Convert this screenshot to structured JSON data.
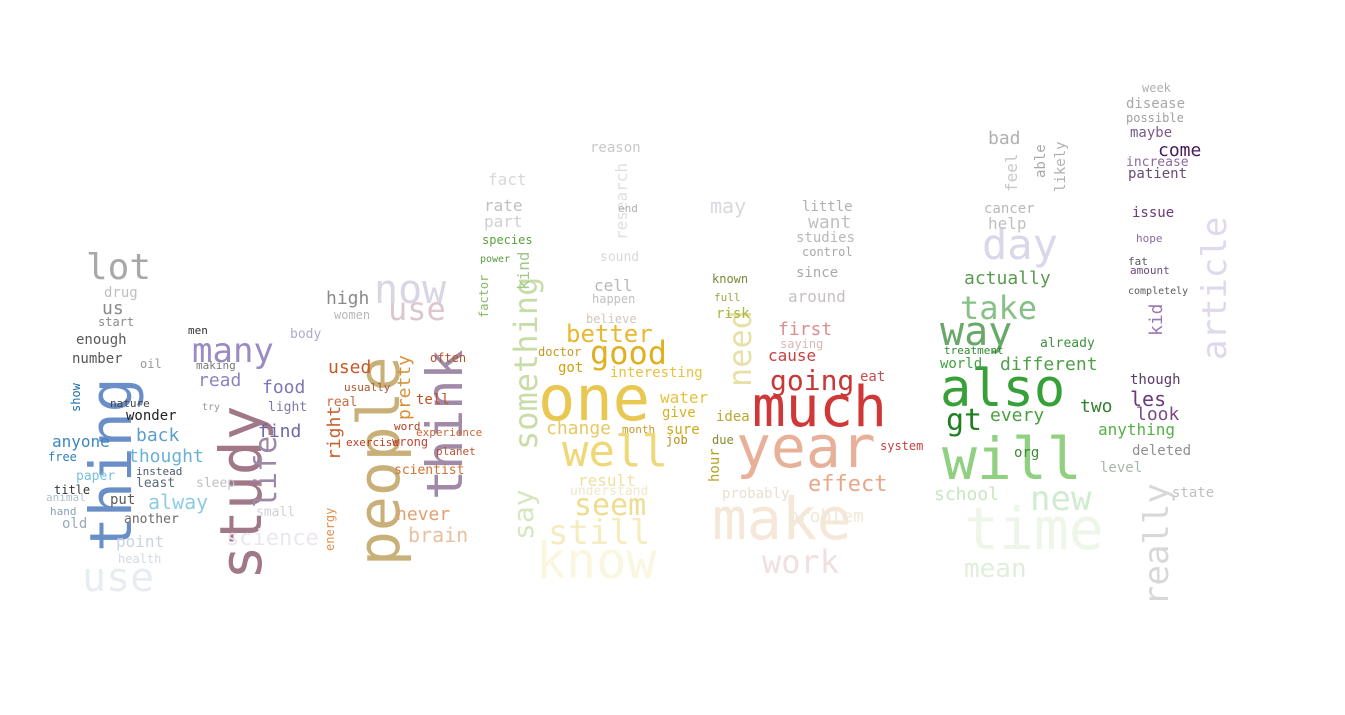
{
  "word_cloud": {
    "words": [
      {
        "text": "thing",
        "color": "#6a8ec8",
        "vertical": true
      },
      {
        "text": "lot",
        "color": "#a8a8a8",
        "vertical": false
      },
      {
        "text": "drug",
        "color": "#bfbfbf",
        "vertical": false
      },
      {
        "text": "us",
        "color": "#8a8a8a",
        "vertical": false
      },
      {
        "text": "start",
        "color": "#8a8a8a",
        "vertical": false
      },
      {
        "text": "enough",
        "color": "#5a5a5a",
        "vertical": false
      },
      {
        "text": "number",
        "color": "#555555",
        "vertical": false
      },
      {
        "text": "oil",
        "color": "#999999",
        "vertical": false
      },
      {
        "text": "show",
        "color": "#1f70a8",
        "vertical": true
      },
      {
        "text": "nature",
        "color": "#444444",
        "vertical": false
      },
      {
        "text": "wonder",
        "color": "#222222",
        "vertical": false
      },
      {
        "text": "anyone",
        "color": "#3f86c0",
        "vertical": false
      },
      {
        "text": "back",
        "color": "#5aa0c8",
        "vertical": false
      },
      {
        "text": "thought",
        "color": "#6ab0d8",
        "vertical": false
      },
      {
        "text": "free",
        "color": "#2f7fb8",
        "vertical": false
      },
      {
        "text": "paper",
        "color": "#7ac0e0",
        "vertical": false
      },
      {
        "text": "alway",
        "color": "#8ccde5",
        "vertical": false
      },
      {
        "text": "least",
        "color": "#5a6a7a",
        "vertical": false
      },
      {
        "text": "instead",
        "color": "#4a5a6a",
        "vertical": false
      },
      {
        "text": "put",
        "color": "#5a5a5a",
        "vertical": false
      },
      {
        "text": "another",
        "color": "#6a6a6a",
        "vertical": false
      },
      {
        "text": "title",
        "color": "#333333",
        "vertical": false
      },
      {
        "text": "old",
        "color": "#99aabb",
        "vertical": false
      },
      {
        "text": "point",
        "color": "#c8d4e0",
        "vertical": false
      },
      {
        "text": "hand",
        "color": "#8aa0b8",
        "vertical": false
      },
      {
        "text": "animal",
        "color": "#b0c0d0",
        "vertical": false
      },
      {
        "text": "health",
        "color": "#d0dae5",
        "vertical": false
      },
      {
        "text": "use",
        "color": "#e8edf2",
        "vertical": false
      },
      {
        "text": "many",
        "color": "#9a8cc2",
        "vertical": false
      },
      {
        "text": "study",
        "color": "#a07888",
        "vertical": true
      },
      {
        "text": "read",
        "color": "#8c84bf",
        "vertical": false
      },
      {
        "text": "food",
        "color": "#7e76b8",
        "vertical": false
      },
      {
        "text": "life",
        "color": "#9d88a8",
        "vertical": true
      },
      {
        "text": "find",
        "color": "#6e68a8",
        "vertical": false
      },
      {
        "text": "light",
        "color": "#7a7aa8",
        "vertical": false
      },
      {
        "text": "body",
        "color": "#b0a8d0",
        "vertical": false
      },
      {
        "text": "men",
        "color": "#333333",
        "vertical": false
      },
      {
        "text": "making",
        "color": "#777777",
        "vertical": false
      },
      {
        "text": "try",
        "color": "#999999",
        "vertical": false
      },
      {
        "text": "sleep",
        "color": "#c0c0c8",
        "vertical": false
      },
      {
        "text": "science",
        "color": "#ebe6f0",
        "vertical": false
      },
      {
        "text": "small",
        "color": "#d0d0d8",
        "vertical": false
      },
      {
        "text": "now",
        "color": "#d8d5e5",
        "vertical": false
      },
      {
        "text": "use",
        "color": "#dcc6d0",
        "vertical": false
      },
      {
        "text": "people",
        "color": "#c8b078",
        "vertical": true
      },
      {
        "text": "think",
        "color": "#a08aa8",
        "vertical": true
      },
      {
        "text": "used",
        "color": "#c85a2a",
        "vertical": false
      },
      {
        "text": "pretty",
        "color": "#d89038",
        "vertical": true
      },
      {
        "text": "high",
        "color": "#8a8a8a",
        "vertical": false
      },
      {
        "text": "women",
        "color": "#b8b8b8",
        "vertical": false
      },
      {
        "text": "right",
        "color": "#c86030",
        "vertical": true
      },
      {
        "text": "real",
        "color": "#c87040",
        "vertical": false
      },
      {
        "text": "tell",
        "color": "#c05028",
        "vertical": false
      },
      {
        "text": "often",
        "color": "#b85028",
        "vertical": false
      },
      {
        "text": "exercise",
        "color": "#b84020",
        "vertical": false
      },
      {
        "text": "wrong",
        "color": "#c04838",
        "vertical": false
      },
      {
        "text": "scientist",
        "color": "#d07030",
        "vertical": false
      },
      {
        "text": "never",
        "color": "#e0a070",
        "vertical": false
      },
      {
        "text": "brain",
        "color": "#e8c0a0",
        "vertical": false
      },
      {
        "text": "energy",
        "color": "#e09050",
        "vertical": true
      },
      {
        "text": "word",
        "color": "#b04020",
        "vertical": false
      },
      {
        "text": "planet",
        "color": "#c05030",
        "vertical": false
      },
      {
        "text": "experience",
        "color": "#c86838",
        "vertical": false
      },
      {
        "text": "usually",
        "color": "#aa5530",
        "vertical": false
      },
      {
        "text": "something",
        "color": "#c8dca8",
        "vertical": true
      },
      {
        "text": "say",
        "color": "#d8e6c0",
        "vertical": true
      },
      {
        "text": "kind",
        "color": "#a0c888",
        "vertical": true
      },
      {
        "text": "species",
        "color": "#5aa040",
        "vertical": false
      },
      {
        "text": "part",
        "color": "#d0d0d0",
        "vertical": false
      },
      {
        "text": "rate",
        "color": "#c0c0c0",
        "vertical": false
      },
      {
        "text": "fact",
        "color": "#d8d8d8",
        "vertical": false
      },
      {
        "text": "research",
        "color": "#e0e0e0",
        "vertical": true
      },
      {
        "text": "power",
        "color": "#5a9a40",
        "vertical": false
      },
      {
        "text": "factor",
        "color": "#88b868",
        "vertical": true
      },
      {
        "text": "one",
        "color": "#e8c850",
        "vertical": false
      },
      {
        "text": "well",
        "color": "#f0d878",
        "vertical": false
      },
      {
        "text": "good",
        "color": "#e0b020",
        "vertical": false
      },
      {
        "text": "better",
        "color": "#e8b830",
        "vertical": false
      },
      {
        "text": "cell",
        "color": "#b8b8b8",
        "vertical": false
      },
      {
        "text": "believe",
        "color": "#d0c8b8",
        "vertical": false
      },
      {
        "text": "doctor",
        "color": "#c89820",
        "vertical": false
      },
      {
        "text": "got",
        "color": "#d0a010",
        "vertical": false
      },
      {
        "text": "interesting",
        "color": "#e8c040",
        "vertical": false
      },
      {
        "text": "change",
        "color": "#e8c860",
        "vertical": false
      },
      {
        "text": "seem",
        "color": "#f0dc90",
        "vertical": false
      },
      {
        "text": "still",
        "color": "#f5ecc0",
        "vertical": false
      },
      {
        "text": "result",
        "color": "#f0e0a0",
        "vertical": false
      },
      {
        "text": "understand",
        "color": "#f0e8c8",
        "vertical": false
      },
      {
        "text": "know",
        "color": "#fbf6e0",
        "vertical": false
      },
      {
        "text": "water",
        "color": "#e8c040",
        "vertical": false
      },
      {
        "text": "give",
        "color": "#d8b020",
        "vertical": false
      },
      {
        "text": "sure",
        "color": "#d0a818",
        "vertical": false
      },
      {
        "text": "job",
        "color": "#b89010",
        "vertical": false
      },
      {
        "text": "month",
        "color": "#c89820",
        "vertical": false
      },
      {
        "text": "sound",
        "color": "#d8d8d8",
        "vertical": false
      },
      {
        "text": "happen",
        "color": "#c0c0c0",
        "vertical": false
      },
      {
        "text": "reason",
        "color": "#c8c8c8",
        "vertical": false
      },
      {
        "text": "end",
        "color": "#b0b0b0",
        "vertical": false
      },
      {
        "text": "much",
        "color": "#d03838",
        "vertical": false
      },
      {
        "text": "year",
        "color": "#e8b098",
        "vertical": false
      },
      {
        "text": "going",
        "color": "#c83838",
        "vertical": false
      },
      {
        "text": "cause",
        "color": "#c84040",
        "vertical": false
      },
      {
        "text": "first",
        "color": "#d89090",
        "vertical": false
      },
      {
        "text": "saying",
        "color": "#d8b8b8",
        "vertical": false
      },
      {
        "text": "around",
        "color": "#c8c0c0",
        "vertical": false
      },
      {
        "text": "since",
        "color": "#b0a8a8",
        "vertical": false
      },
      {
        "text": "want",
        "color": "#c0c0c0",
        "vertical": false
      },
      {
        "text": "studies",
        "color": "#b8b8b8",
        "vertical": false
      },
      {
        "text": "little",
        "color": "#b0b0b0",
        "vertical": false
      },
      {
        "text": "control",
        "color": "#a8a8a8",
        "vertical": false
      },
      {
        "text": "effect",
        "color": "#e8a888",
        "vertical": false
      },
      {
        "text": "eat",
        "color": "#c05050",
        "vertical": false
      },
      {
        "text": "make",
        "color": "#f5e8d8",
        "vertical": false
      },
      {
        "text": "work",
        "color": "#f0e0e0",
        "vertical": false
      },
      {
        "text": "need",
        "color": "#e8e0a8",
        "vertical": true
      },
      {
        "text": "risk",
        "color": "#a8b838",
        "vertical": false
      },
      {
        "text": "known",
        "color": "#788838",
        "vertical": false
      },
      {
        "text": "full",
        "color": "#a0a840",
        "vertical": false
      },
      {
        "text": "idea",
        "color": "#b8a830",
        "vertical": false
      },
      {
        "text": "due",
        "color": "#888830",
        "vertical": false
      },
      {
        "text": "hour",
        "color": "#b8a020",
        "vertical": true
      },
      {
        "text": "may",
        "color": "#d8d8e0",
        "vertical": false
      },
      {
        "text": "probably",
        "color": "#e8e0d0",
        "vertical": false
      },
      {
        "text": "problem",
        "color": "#f0e8d8",
        "vertical": false
      },
      {
        "text": "system",
        "color": "#c84040",
        "vertical": false
      },
      {
        "text": "also",
        "color": "#38a038",
        "vertical": false
      },
      {
        "text": "will",
        "color": "#90d080",
        "vertical": false
      },
      {
        "text": "way",
        "color": "#68a868",
        "vertical": false
      },
      {
        "text": "take",
        "color": "#88c088",
        "vertical": false
      },
      {
        "text": "gt",
        "color": "#208020",
        "vertical": false
      },
      {
        "text": "day",
        "color": "#d8d8e8",
        "vertical": false
      },
      {
        "text": "actually",
        "color": "#5a9a50",
        "vertical": false
      },
      {
        "text": "different",
        "color": "#50a048",
        "vertical": false
      },
      {
        "text": "every",
        "color": "#48a040",
        "vertical": false
      },
      {
        "text": "two",
        "color": "#308030",
        "vertical": false
      },
      {
        "text": "anything",
        "color": "#58b048",
        "vertical": false
      },
      {
        "text": "world",
        "color": "#40a040",
        "vertical": false
      },
      {
        "text": "treatment",
        "color": "#308830",
        "vertical": false
      },
      {
        "text": "already",
        "color": "#409040",
        "vertical": false
      },
      {
        "text": "cancer",
        "color": "#b8b8b8",
        "vertical": false
      },
      {
        "text": "help",
        "color": "#c0c0c0",
        "vertical": false
      },
      {
        "text": "bad",
        "color": "#b0b0b0",
        "vertical": false
      },
      {
        "text": "feel",
        "color": "#c8c8c8",
        "vertical": true
      },
      {
        "text": "able",
        "color": "#a8a8a8",
        "vertical": true
      },
      {
        "text": "likely",
        "color": "#b0b0b0",
        "vertical": true
      },
      {
        "text": "new",
        "color": "#d0ecd0",
        "vertical": false
      },
      {
        "text": "time",
        "color": "#eef6ea",
        "vertical": false
      },
      {
        "text": "school",
        "color": "#c8e6c0",
        "vertical": false
      },
      {
        "text": "mean",
        "color": "#e0eedc",
        "vertical": false
      },
      {
        "text": "org",
        "color": "#408838",
        "vertical": false
      },
      {
        "text": "level",
        "color": "#a8b8a8",
        "vertical": false
      },
      {
        "text": "deleted",
        "color": "#909090",
        "vertical": false
      },
      {
        "text": "look",
        "color": "#7a4a8a",
        "vertical": false
      },
      {
        "text": "les",
        "color": "#6a3a7a",
        "vertical": false
      },
      {
        "text": "though",
        "color": "#5a3a6a",
        "vertical": false
      },
      {
        "text": "article",
        "color": "#e0d8ec",
        "vertical": true
      },
      {
        "text": "kid",
        "color": "#9a78b0",
        "vertical": true
      },
      {
        "text": "week",
        "color": "#b0b0b0",
        "vertical": false
      },
      {
        "text": "disease",
        "color": "#a8a8a8",
        "vertical": false
      },
      {
        "text": "possible",
        "color": "#a0a0a0",
        "vertical": false
      },
      {
        "text": "maybe",
        "color": "#7a5a8a",
        "vertical": false
      },
      {
        "text": "come",
        "color": "#4a1a5a",
        "vertical": false
      },
      {
        "text": "increase",
        "color": "#8a6a9a",
        "vertical": false
      },
      {
        "text": "patient",
        "color": "#6a4a7a",
        "vertical": false
      },
      {
        "text": "issue",
        "color": "#6a3a7a",
        "vertical": false
      },
      {
        "text": "hope",
        "color": "#8a6a9a",
        "vertical": false
      },
      {
        "text": "fat",
        "color": "#5a5a5a",
        "vertical": false
      },
      {
        "text": "amount",
        "color": "#6a4a7a",
        "vertical": false
      },
      {
        "text": "completely",
        "color": "#5a5a5a",
        "vertical": false
      },
      {
        "text": "really",
        "color": "#d8d8d8",
        "vertical": true
      },
      {
        "text": "state",
        "color": "#c0c0c0",
        "vertical": false
      }
    ]
  }
}
